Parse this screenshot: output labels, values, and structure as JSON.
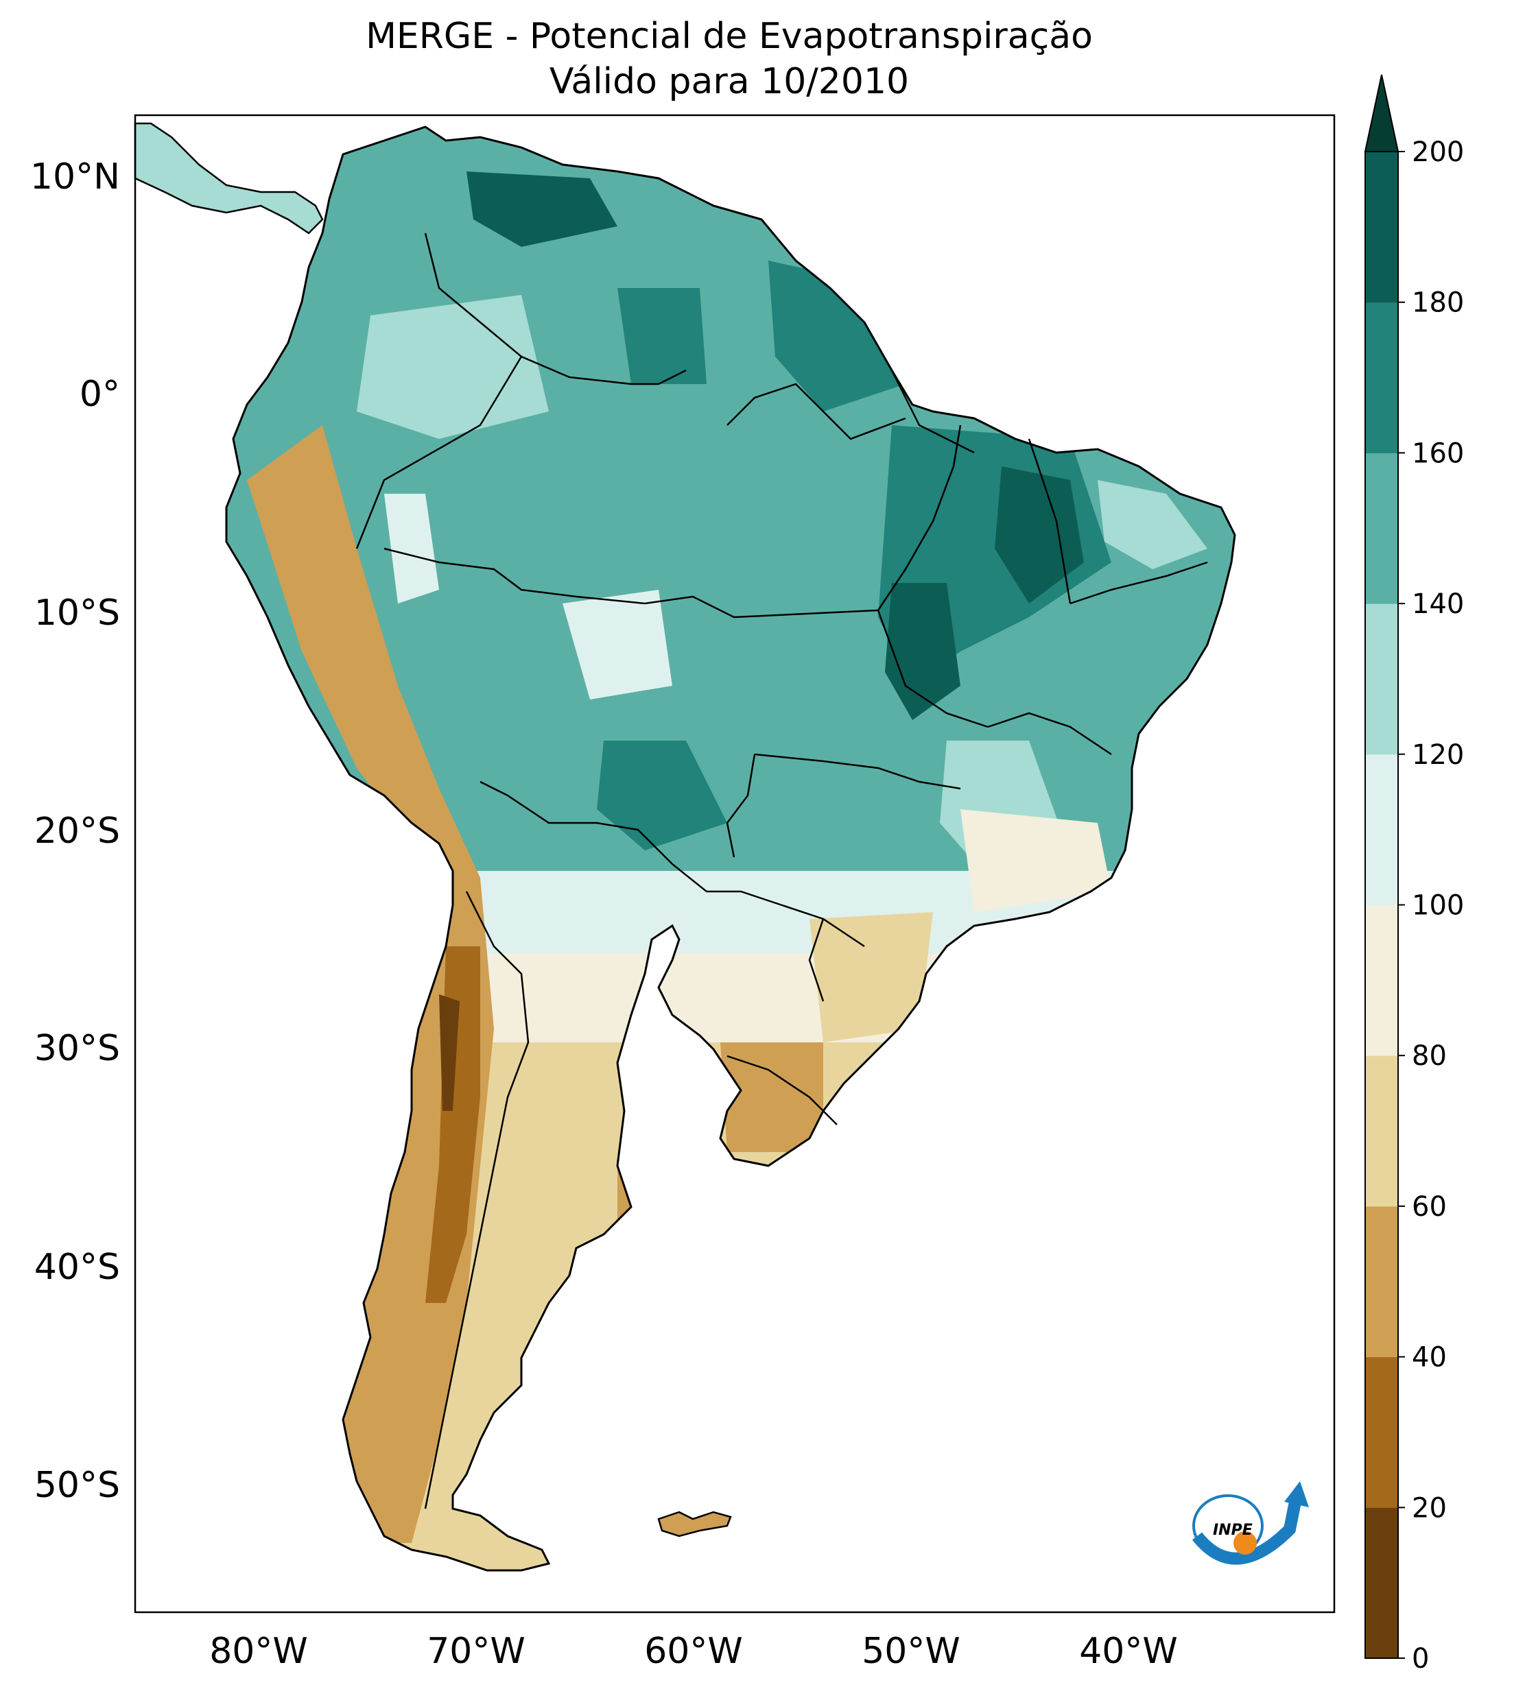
{
  "title": {
    "line1": "MERGE - Potencial de Evapotranspiração",
    "line2": "Válido para 10/2010"
  },
  "map": {
    "region": "South America",
    "lon_range": [
      -85,
      -30
    ],
    "lat_range": [
      -56,
      13
    ],
    "lon_ticks": [
      "80°W",
      "70°W",
      "60°W",
      "50°W",
      "40°W"
    ],
    "lat_ticks": [
      "10°N",
      "0°",
      "10°S",
      "20°S",
      "30°S",
      "40°S",
      "50°S"
    ]
  },
  "colorbar": {
    "min": 0,
    "max": 200,
    "step": 20,
    "extend": "max",
    "tick_labels": [
      "0",
      "20",
      "40",
      "60",
      "80",
      "100",
      "120",
      "140",
      "160",
      "180",
      "200"
    ],
    "colors": [
      "#6b3f0d",
      "#a5691c",
      "#cf9f53",
      "#e8d59e",
      "#f4eedd",
      "#dff1ee",
      "#a6dcd3",
      "#5bb0a5",
      "#21837a",
      "#0c5e54"
    ],
    "extend_color": "#053d32"
  },
  "logo": {
    "text": "INPE",
    "ring_color": "#1b7dc0",
    "dot_color": "#f08a1c"
  }
}
